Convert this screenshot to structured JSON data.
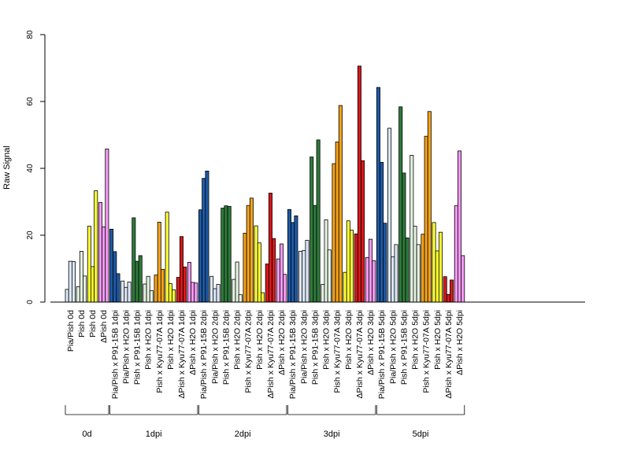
{
  "chart_data": {
    "type": "bar",
    "title": "",
    "xlabel": "",
    "ylabel": "Raw Signal",
    "ylim": [
      0,
      80
    ],
    "yticks": [
      "0",
      "20",
      "40",
      "60",
      "80"
    ],
    "grid": false,
    "legend": "none",
    "colors": {
      "dark_blue": "#1f5aa6",
      "light_blue": "#dce8f7",
      "dark_green": "#2e7a3a",
      "light_green": "#e4f2e0",
      "orange": "#f5a31a",
      "yellow": "#ffff33",
      "red": "#d7191c",
      "pink": "#f69af6"
    },
    "categories": [
      {
        "label": "Pia/Pish 0d",
        "color": "light_blue",
        "values": [
          3.8,
          12.2,
          12.1
        ]
      },
      {
        "label": "Pish 0d",
        "color": "light_green",
        "values": [
          4.6,
          15.2,
          7.8
        ]
      },
      {
        "label": "Pish 0d",
        "color": "yellow",
        "values": [
          22.7,
          10.6,
          33.3
        ]
      },
      {
        "label": "ΔPish 0d",
        "color": "pink",
        "values": [
          29.8,
          22.5,
          45.8
        ]
      },
      {
        "label": "Pia/Pish x P91-15B 1dpi",
        "color": "dark_blue",
        "values": [
          21.8,
          15.1,
          8.5
        ]
      },
      {
        "label": "Pia/Pish x H2O 1dpi",
        "color": "light_blue",
        "values": [
          6.3,
          4.4,
          6.0
        ]
      },
      {
        "label": "Pish x P91-15B 1dpi",
        "color": "dark_green",
        "values": [
          25.2,
          12.2,
          13.9
        ]
      },
      {
        "label": "Pish x H2O 1dpi",
        "color": "light_green",
        "values": [
          5.4,
          7.7,
          3.4
        ]
      },
      {
        "label": "Pish x Kyu77-07A 1dpi",
        "color": "orange",
        "values": [
          8.1,
          23.9,
          9.8
        ]
      },
      {
        "label": "Pish x H2O 1dpi",
        "color": "yellow",
        "values": [
          26.9,
          5.5,
          3.7
        ]
      },
      {
        "label": "ΔPish x Kyu77-07A 1dpi",
        "color": "red",
        "values": [
          7.4,
          19.6,
          10.5
        ]
      },
      {
        "label": "ΔPish x H2O 1dpi",
        "color": "pink",
        "values": [
          11.9,
          5.9,
          5.7
        ]
      },
      {
        "label": "Pia/Pish x P91-15B 2dpi",
        "color": "dark_blue",
        "values": [
          27.6,
          37.0,
          39.2
        ]
      },
      {
        "label": "Pia/Pish x H2O 2dpi",
        "color": "light_blue",
        "values": [
          7.7,
          4.0,
          5.3
        ]
      },
      {
        "label": "Pish x P91-15B 2dpi",
        "color": "dark_green",
        "values": [
          28.1,
          28.8,
          28.6
        ]
      },
      {
        "label": "Pish x H2O 2dpi",
        "color": "light_green",
        "values": [
          6.8,
          12.0,
          2.2
        ]
      },
      {
        "label": "Pish x Kyu77-07A 2dpi",
        "color": "orange",
        "values": [
          20.6,
          28.9,
          31.1
        ]
      },
      {
        "label": "Pish x H2O 2dpi",
        "color": "yellow",
        "values": [
          22.8,
          17.7,
          2.8
        ]
      },
      {
        "label": "ΔPish x Kyu77-07A 2dpi",
        "color": "red",
        "values": [
          11.4,
          32.6,
          19.0
        ]
      },
      {
        "label": "ΔPish x H2O 2dpi",
        "color": "pink",
        "values": [
          12.9,
          17.4,
          8.3
        ]
      },
      {
        "label": "Pia/Pish x P91-15B 3dpi",
        "color": "dark_blue",
        "values": [
          27.7,
          23.8,
          25.8
        ]
      },
      {
        "label": "Pia/Pish x H2O 3dpi",
        "color": "light_blue",
        "values": [
          15.2,
          15.4,
          18.5
        ]
      },
      {
        "label": "Pish x P91-15B 3dpi",
        "color": "dark_green",
        "values": [
          43.4,
          28.9,
          48.5
        ]
      },
      {
        "label": "Pish x H2O 3dpi",
        "color": "light_green",
        "values": [
          5.3,
          24.6,
          15.6
        ]
      },
      {
        "label": "Pish x Kyu77-07A 3dpi",
        "color": "orange",
        "values": [
          41.4,
          47.9,
          58.8
        ]
      },
      {
        "label": "Pish x H2O 3dpi",
        "color": "yellow",
        "values": [
          8.9,
          24.3,
          21.5
        ]
      },
      {
        "label": "ΔPish x Kyu77-07A 3dpi",
        "color": "red",
        "values": [
          20.4,
          70.6,
          42.3
        ]
      },
      {
        "label": "ΔPish x H2O 3dpi",
        "color": "pink",
        "values": [
          13.3,
          18.8,
          12.4
        ]
      },
      {
        "label": "Pia/Pish x P91-15B 5dpi",
        "color": "dark_blue",
        "values": [
          64.2,
          41.8,
          23.6
        ]
      },
      {
        "label": "Pia/Pish x H2O 5dpi",
        "color": "light_blue",
        "values": [
          52.0,
          13.5,
          17.2
        ]
      },
      {
        "label": "Pish x P91-15B 5dpi",
        "color": "dark_green",
        "values": [
          58.4,
          38.6,
          19.2
        ]
      },
      {
        "label": "Pish x H2O 5dpi",
        "color": "light_green",
        "values": [
          43.9,
          22.7,
          17.2
        ]
      },
      {
        "label": "Pish x Kyu77-07A 5dpi",
        "color": "orange",
        "values": [
          20.3,
          49.6,
          57.0
        ]
      },
      {
        "label": "Pish x H2O 5dpi",
        "color": "yellow",
        "values": [
          23.8,
          15.3,
          20.9
        ]
      },
      {
        "label": "ΔPish x Kyu77-07A 5dpi",
        "color": "red",
        "values": [
          7.6,
          2.3,
          6.6
        ]
      },
      {
        "label": "ΔPish x H2O 5dpi",
        "color": "pink",
        "values": [
          28.8,
          45.2,
          13.9
        ]
      }
    ],
    "groups": [
      {
        "label": "0d",
        "first": 0,
        "last": 3
      },
      {
        "label": "1dpi",
        "first": 4,
        "last": 11
      },
      {
        "label": "2dpi",
        "first": 12,
        "last": 19
      },
      {
        "label": "3dpi",
        "first": 20,
        "last": 27
      },
      {
        "label": "5dpi",
        "first": 28,
        "last": 35
      }
    ]
  }
}
